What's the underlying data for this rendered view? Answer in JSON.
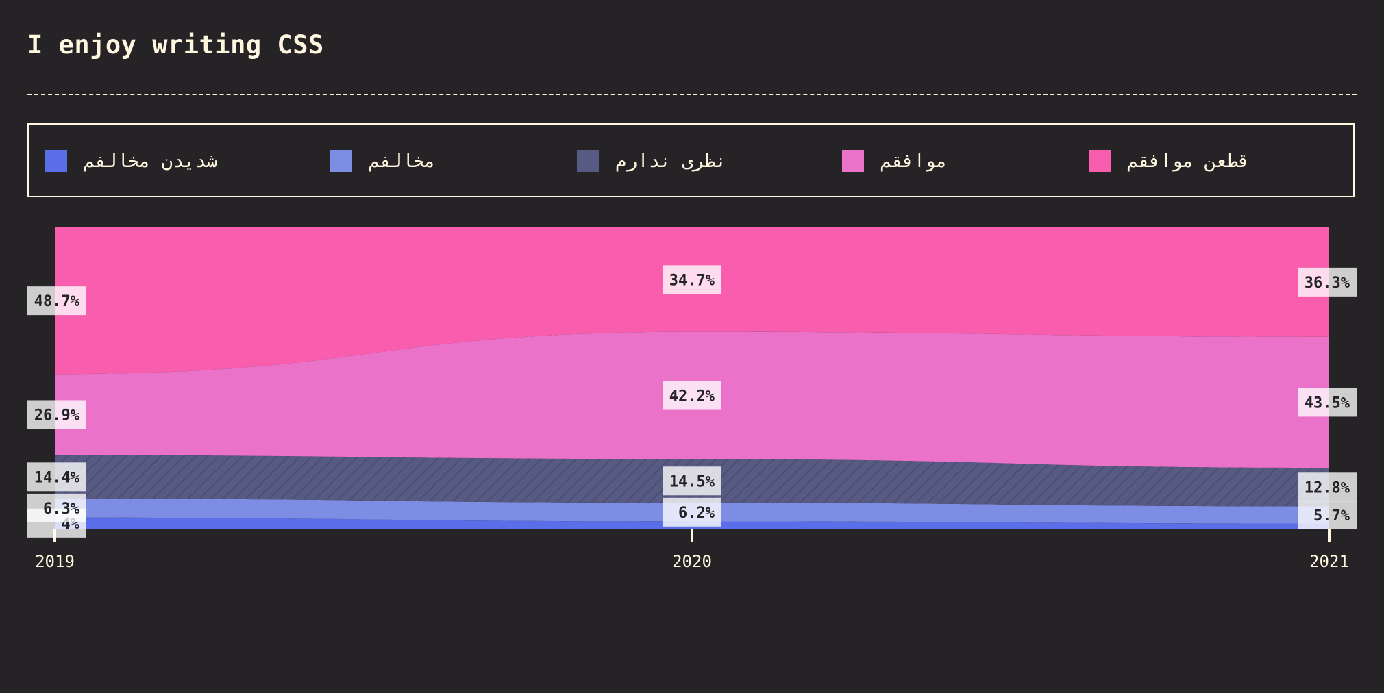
{
  "title": "I enjoy writing CSS",
  "legend": [
    {
      "label": "شدیدن مخالفم",
      "color": "#5a6ee9"
    },
    {
      "label": "مخالفم",
      "color": "#7e8de4"
    },
    {
      "label": "نظری ندارم",
      "color": "#575a82"
    },
    {
      "label": "موافقم",
      "color": "#ea72c9"
    },
    {
      "label": "قطعن موافقم",
      "color": "#f95eae"
    }
  ],
  "chart_data": {
    "type": "area",
    "stacked": true,
    "normalized": true,
    "title": "I enjoy writing CSS",
    "x": [
      "2019",
      "2020",
      "2021"
    ],
    "ylim": [
      0,
      100
    ],
    "series": [
      {
        "name": "شدیدن مخالفم",
        "color": "#5a6ee9",
        "values": [
          3.7,
          2.4,
          1.7
        ],
        "labels": [
          "4%",
          "",
          ""
        ]
      },
      {
        "name": "مخالفم",
        "color": "#7e8de4",
        "values": [
          6.3,
          6.2,
          5.7
        ],
        "labels": [
          "6.3%",
          "6.2%",
          "5.7%"
        ]
      },
      {
        "name": "نظری ندارم",
        "color": "#575a82",
        "values": [
          14.4,
          14.5,
          12.8
        ],
        "labels": [
          "14.4%",
          "14.5%",
          "12.8%"
        ]
      },
      {
        "name": "موافقم",
        "color": "#ea72c9",
        "values": [
          26.9,
          42.2,
          43.5
        ],
        "labels": [
          "26.9%",
          "42.2%",
          "43.5%"
        ]
      },
      {
        "name": "قطعن موافقم",
        "color": "#f95eae",
        "values": [
          48.7,
          34.7,
          36.3
        ],
        "labels": [
          "48.7%",
          "34.7%",
          "36.3%"
        ]
      }
    ]
  }
}
